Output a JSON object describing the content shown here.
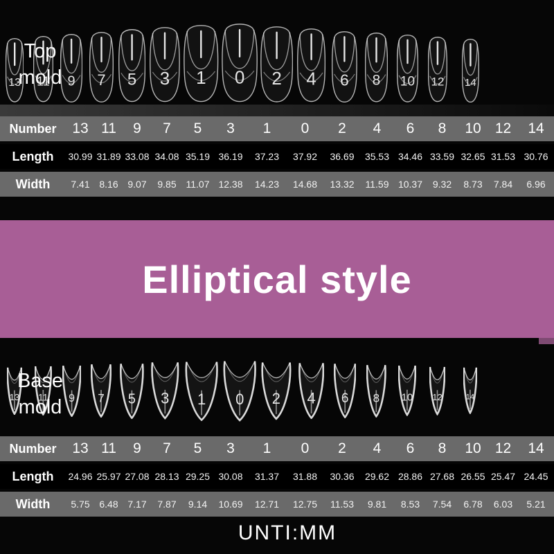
{
  "top": {
    "label": "Top mold",
    "numbers": [
      "13",
      "11",
      "9",
      "7",
      "5",
      "3",
      "1",
      "0",
      "2",
      "4",
      "6",
      "8",
      "10",
      "12",
      "14"
    ],
    "row_labels": {
      "number": "Number",
      "length": "Length",
      "width": "Width"
    },
    "lengths": [
      "30.99",
      "31.89",
      "33.08",
      "34.08",
      "35.19",
      "36.19",
      "37.23",
      "37.92",
      "36.69",
      "35.53",
      "34.46",
      "33.59",
      "32.65",
      "31.53",
      "30.76"
    ],
    "widths": [
      "7.41",
      "8.16",
      "9.07",
      "9.85",
      "11.07",
      "12.38",
      "14.23",
      "14.68",
      "13.32",
      "11.59",
      "10.37",
      "9.32",
      "8.73",
      "7.84",
      "6.96"
    ]
  },
  "banner": {
    "text": "Elliptical style"
  },
  "base": {
    "label": "Base mold",
    "numbers": [
      "13",
      "11",
      "9",
      "7",
      "5",
      "3",
      "1",
      "0",
      "2",
      "4",
      "6",
      "8",
      "10",
      "12",
      "14"
    ],
    "row_labels": {
      "number": "Number",
      "length": "Length",
      "width": "Width"
    },
    "lengths": [
      "24.96",
      "25.97",
      "27.08",
      "28.13",
      "29.25",
      "30.08",
      "31.37",
      "31.88",
      "30.36",
      "29.62",
      "28.86",
      "27.68",
      "26.55",
      "25.47",
      "24.45"
    ],
    "widths": [
      "5.75",
      "6.48",
      "7.17",
      "7.87",
      "9.14",
      "10.69",
      "12.71",
      "12.75",
      "11.53",
      "9.81",
      "8.53",
      "7.54",
      "6.78",
      "6.03",
      "5.21"
    ]
  },
  "footer": {
    "unit_text": "UNTI:MM"
  },
  "colors": {
    "background": "#060606",
    "row_gray": "#6a6a6a",
    "row_black": "#000000",
    "banner_pink": "#a85e96",
    "banner_edge_dark": "#7e4a72",
    "text_white": "#ffffff"
  }
}
